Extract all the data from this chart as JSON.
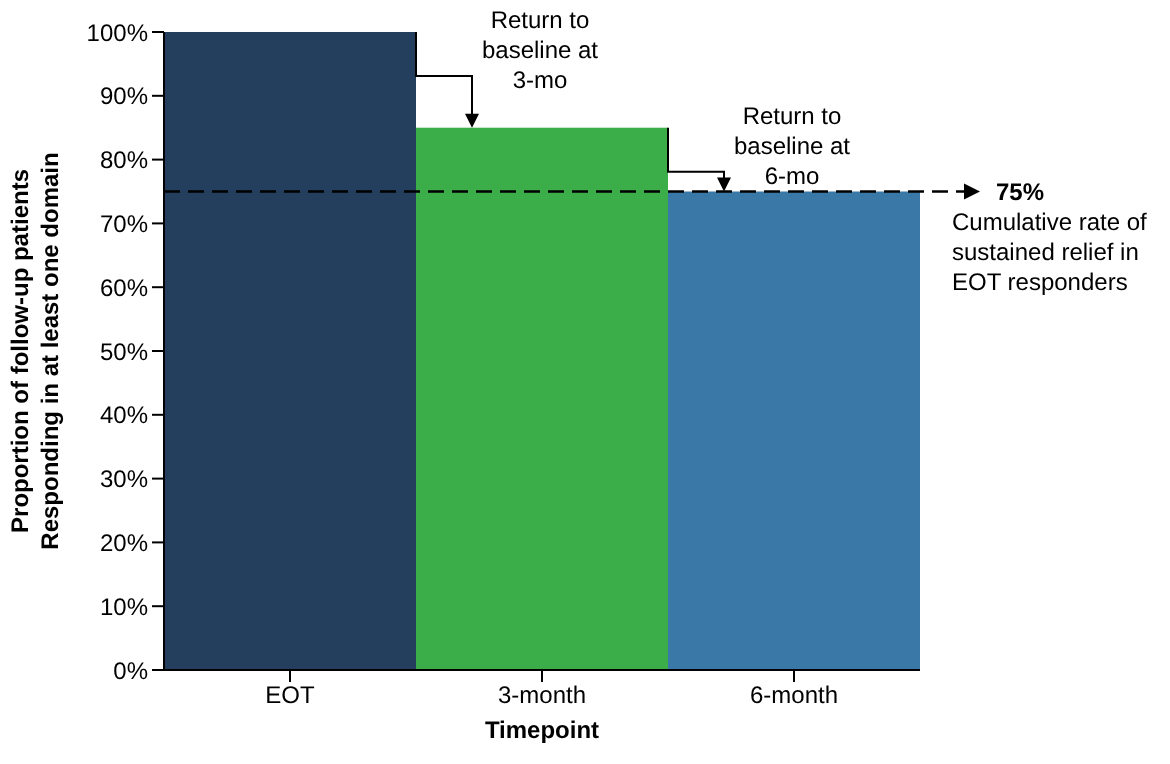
{
  "chart_data": {
    "type": "bar",
    "categories": [
      "EOT",
      "3-month",
      "6-month"
    ],
    "values": [
      100,
      85,
      75
    ],
    "colors": [
      "#243f5e",
      "#3cae49",
      "#3a78a8"
    ],
    "xlabel": "Timepoint",
    "ylabel": "Proportion of follow-up patients\nResponding in at least one domain",
    "ylim": [
      0,
      100
    ],
    "yticks": [
      {
        "value": 0,
        "label": "0%"
      },
      {
        "value": 10,
        "label": "10%"
      },
      {
        "value": 20,
        "label": "20%"
      },
      {
        "value": 30,
        "label": "30%"
      },
      {
        "value": 40,
        "label": "40%"
      },
      {
        "value": 50,
        "label": "50%"
      },
      {
        "value": 60,
        "label": "60%"
      },
      {
        "value": 70,
        "label": "70%"
      },
      {
        "value": 80,
        "label": "80%"
      },
      {
        "value": 90,
        "label": "90%"
      },
      {
        "value": 100,
        "label": "100%"
      }
    ],
    "ref_lines": [
      {
        "axis": "y",
        "value": 75,
        "label": "75%",
        "color": "#000000",
        "line_style": "dashed"
      }
    ],
    "annotations": [
      "Return to baseline at 3-mo",
      "Return to baseline at 6-mo",
      "Cumulative rate of sustained relief in EOT responders"
    ]
  }
}
